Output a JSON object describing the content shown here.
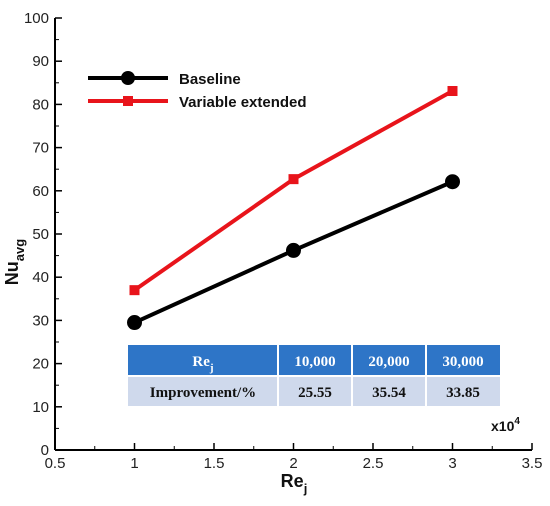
{
  "chart_data": {
    "type": "line",
    "xlabel": "Re",
    "xlabel_sub": "j",
    "ylabel": "Nu",
    "ylabel_sub": "avg",
    "x_multiplier": "x10",
    "x_multiplier_exp": "4",
    "xlim": [
      0.5,
      3.5
    ],
    "ylim": [
      0,
      100
    ],
    "xticks": [
      "0.5",
      "1",
      "1.5",
      "2",
      "2.5",
      "3",
      "3.5"
    ],
    "yticks": [
      "0",
      "10",
      "20",
      "30",
      "40",
      "50",
      "60",
      "70",
      "80",
      "90",
      "100"
    ],
    "grid": false,
    "legend_position": "top-left",
    "series": [
      {
        "name": "Baseline",
        "color": "#000000",
        "marker": "circle",
        "x": [
          1,
          2,
          3
        ],
        "y": [
          29.5,
          46.2,
          62.1
        ]
      },
      {
        "name": "Variable extended",
        "color": "#e8141b",
        "marker": "square",
        "x": [
          1,
          2,
          3
        ],
        "y": [
          37.0,
          62.7,
          83.1
        ]
      }
    ],
    "table": {
      "header": [
        "Re",
        "10,000",
        "20,000",
        "30,000"
      ],
      "header_sub": "j",
      "row_label": "Improvement/%",
      "values": [
        "25.55",
        "35.54",
        "33.85"
      ],
      "header_color": "#2e75c7",
      "row_color": "#cfd9ec"
    }
  }
}
